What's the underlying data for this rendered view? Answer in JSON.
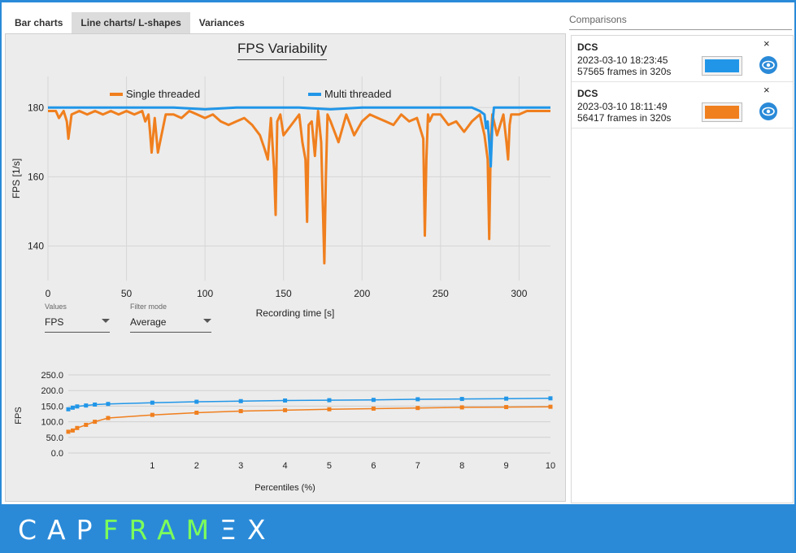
{
  "tabs": [
    {
      "label": "Bar charts",
      "active": false
    },
    {
      "label": "Line charts/ L-shapes",
      "active": true
    },
    {
      "label": "Variances",
      "active": false
    }
  ],
  "colors": {
    "accent": "#2a8ad8",
    "multi_threaded": "#2196e8",
    "single_threaded": "#f07f1e",
    "logo_green": "#7dff5a"
  },
  "main": {
    "dropdowns": {
      "values": {
        "label": "Values",
        "selected": "FPS"
      },
      "filter_mode": {
        "label": "Filter mode",
        "selected": "Average"
      }
    }
  },
  "chart_data": [
    {
      "type": "line",
      "title": "FPS Variability",
      "xlabel": "Recording time [s]",
      "ylabel": "FPS [1/s]",
      "xlim": [
        0,
        320
      ],
      "ylim": [
        130,
        189
      ],
      "x_ticks": [
        "0",
        "50",
        "100",
        "150",
        "200",
        "250",
        "300"
      ],
      "y_ticks": [
        "140",
        "160",
        "180"
      ],
      "grid": true,
      "legend_position": "top",
      "series": [
        {
          "name": "Single threaded",
          "color": "#f07f1e",
          "x": [
            0,
            5,
            7,
            10,
            12,
            13,
            15,
            20,
            25,
            30,
            35,
            40,
            45,
            50,
            55,
            60,
            62,
            64,
            65,
            66,
            68,
            70,
            75,
            80,
            85,
            90,
            95,
            100,
            105,
            110,
            115,
            120,
            125,
            130,
            135,
            138,
            140,
            142,
            144,
            145,
            146,
            148,
            150,
            155,
            160,
            162,
            164,
            165,
            166,
            168,
            170,
            172,
            174,
            175,
            176,
            177,
            178,
            180,
            185,
            190,
            195,
            200,
            205,
            210,
            215,
            220,
            225,
            230,
            235,
            239,
            240,
            241,
            242,
            243,
            245,
            250,
            255,
            260,
            265,
            270,
            275,
            278,
            280,
            281,
            282,
            283,
            284,
            286,
            290,
            292,
            293,
            294,
            295,
            300,
            305,
            310,
            315,
            320
          ],
          "y": [
            179,
            179,
            177,
            179,
            176,
            171,
            178,
            179,
            178,
            179,
            178,
            179,
            178,
            179,
            178,
            179,
            176,
            178,
            173,
            167,
            177,
            167,
            178,
            178,
            177,
            179,
            178,
            177,
            178,
            176,
            175,
            176,
            177,
            175,
            172,
            168,
            165,
            177,
            162,
            149,
            176,
            178,
            172,
            175,
            178,
            170,
            165,
            147,
            175,
            176,
            166,
            179,
            170,
            152,
            135,
            160,
            178,
            176,
            170,
            178,
            172,
            176,
            178,
            177,
            176,
            175,
            178,
            176,
            177,
            171,
            143,
            165,
            178,
            176,
            178,
            178,
            175,
            176,
            173,
            176,
            178,
            172,
            165,
            142,
            170,
            178,
            176,
            172,
            178,
            170,
            165,
            175,
            178,
            178,
            179,
            179,
            179,
            179
          ]
        },
        {
          "name": "Multi threaded",
          "color": "#2196e8",
          "x": [
            0,
            20,
            40,
            60,
            80,
            100,
            120,
            140,
            160,
            180,
            200,
            220,
            240,
            260,
            270,
            275,
            278,
            279,
            280,
            281,
            282,
            283,
            284,
            286,
            290,
            300,
            310,
            320
          ],
          "y": [
            180,
            180,
            180,
            180,
            180,
            179.5,
            180,
            180,
            180,
            179.5,
            180,
            180,
            180,
            180,
            180,
            179,
            178,
            174,
            176,
            170,
            163,
            175,
            180,
            180,
            180,
            180,
            180,
            180
          ]
        }
      ]
    },
    {
      "type": "line",
      "title": "",
      "xlabel": "Percentiles (%)",
      "ylabel": "FPS",
      "xlim": [
        -0.9,
        10
      ],
      "ylim": [
        0,
        250
      ],
      "x_ticks": [
        "1",
        "2",
        "3",
        "4",
        "5",
        "6",
        "7",
        "8",
        "9",
        "10"
      ],
      "y_ticks": [
        "0.0",
        "50.0",
        "100.0",
        "150.0",
        "200.0",
        "250.0"
      ],
      "grid": true,
      "series": [
        {
          "name": "Multi threaded",
          "color": "#2196e8",
          "x": [
            -0.9,
            -0.8,
            -0.7,
            -0.5,
            -0.3,
            0,
            1,
            2,
            3,
            4,
            5,
            6,
            7,
            8,
            9,
            10
          ],
          "y": [
            140,
            145,
            149,
            152,
            155,
            157,
            161,
            164,
            166,
            168,
            169,
            170,
            172,
            173,
            174,
            175
          ]
        },
        {
          "name": "Single threaded",
          "color": "#f07f1e",
          "x": [
            -0.9,
            -0.8,
            -0.7,
            -0.5,
            -0.3,
            0,
            1,
            2,
            3,
            4,
            5,
            6,
            7,
            8,
            9,
            10
          ],
          "y": [
            68,
            72,
            80,
            90,
            100,
            112,
            122,
            129,
            134,
            137,
            140,
            142,
            144,
            146,
            147,
            148
          ]
        }
      ]
    }
  ],
  "comparisons": {
    "header": "Comparisons",
    "items": [
      {
        "game": "DCS",
        "date": "2023-03-10 18:23:45",
        "frames": "57565 frames in 320s",
        "color": "#2196e8",
        "close": "×"
      },
      {
        "game": "DCS",
        "date": "2023-03-10 18:11:49",
        "frames": "56417 frames in 320s",
        "color": "#f07f1e",
        "close": "×"
      }
    ]
  },
  "footer": {
    "logo_part1": "CAP",
    "logo_part2": "FRAM",
    "logo_part3": "ΞX"
  }
}
